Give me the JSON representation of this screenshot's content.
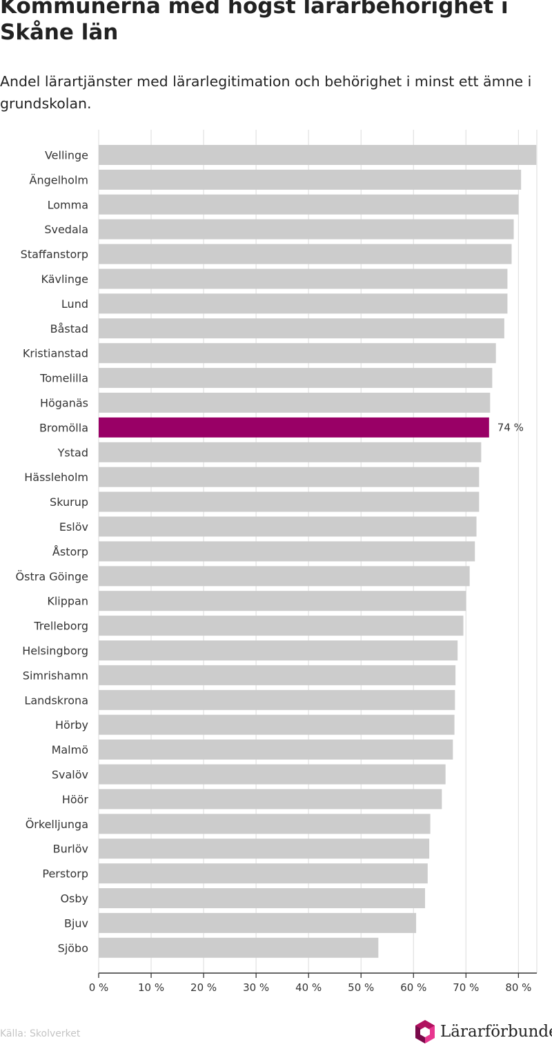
{
  "title": "Kommunerna med högst lärarbehörighet i Skåne län",
  "subtitle": "Andel lärartjänster med lärarlegitimation och behörighet i minst ett ämne i grundskolan.",
  "source": "Källa: Skolverket",
  "brand": "Lärarförbundet",
  "colors": {
    "bar": "#cccccc",
    "highlight": "#990066",
    "grid": "#e3e3e3",
    "axis": "#333333"
  },
  "chart_data": {
    "type": "bar",
    "orientation": "horizontal",
    "xlim": [
      0,
      83.5
    ],
    "xticks": [
      0,
      10,
      20,
      30,
      40,
      50,
      60,
      70,
      80
    ],
    "xtick_labels": [
      "0 %",
      "10 %",
      "20 %",
      "30 %",
      "40 %",
      "50 %",
      "60 %",
      "70 %",
      "80 %"
    ],
    "grid": true,
    "categories": [
      "Vellinge",
      "Ängelholm",
      "Lomma",
      "Svedala",
      "Staffanstorp",
      "Kävlinge",
      "Lund",
      "Båstad",
      "Kristianstad",
      "Tomelilla",
      "Höganäs",
      "Bromölla",
      "Ystad",
      "Hässleholm",
      "Skurup",
      "Eslöv",
      "Åstorp",
      "Östra Göinge",
      "Klippan",
      "Trelleborg",
      "Helsingborg",
      "Simrishamn",
      "Landskrona",
      "Hörby",
      "Malmö",
      "Svalöv",
      "Höör",
      "Örkelljunga",
      "Burlöv",
      "Perstorp",
      "Osby",
      "Bjuv",
      "Sjöbo"
    ],
    "values": [
      83.4,
      80.5,
      80.0,
      79.1,
      78.7,
      77.9,
      77.9,
      77.3,
      75.7,
      75.0,
      74.6,
      74.4,
      72.9,
      72.5,
      72.5,
      72.0,
      71.7,
      70.7,
      70.0,
      69.5,
      68.4,
      68.0,
      67.9,
      67.8,
      67.5,
      66.1,
      65.4,
      63.2,
      63.0,
      62.7,
      62.2,
      60.5,
      53.3
    ],
    "highlight": "Bromölla",
    "data_labels": {
      "Bromölla": "74 %"
    }
  }
}
